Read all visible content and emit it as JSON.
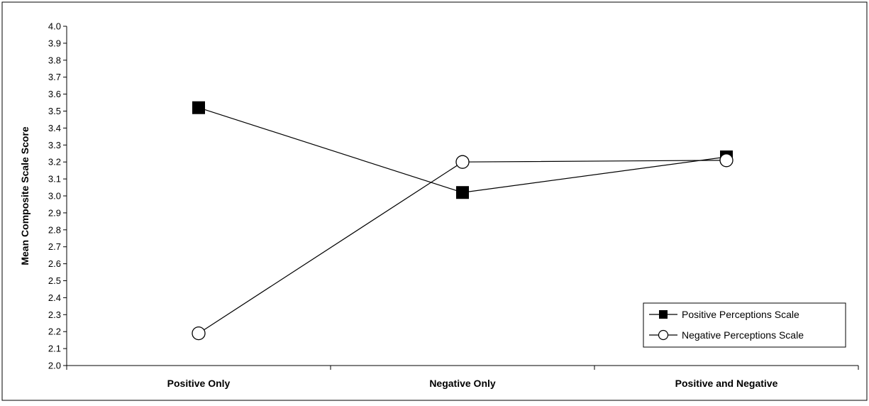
{
  "chart_data": {
    "type": "line",
    "title": "",
    "xlabel": "",
    "ylabel": "Mean Composite Scale Score",
    "categories": [
      "Positive Only",
      "Negative Only",
      "Positive and Negative"
    ],
    "ylim": [
      2.0,
      4.0
    ],
    "yticks": [
      "2.0",
      "2.1",
      "2.2",
      "2.3",
      "2.4",
      "2.5",
      "2.6",
      "2.7",
      "2.8",
      "2.9",
      "3.0",
      "3.1",
      "3.2",
      "3.3",
      "3.4",
      "3.5",
      "3.6",
      "3.7",
      "3.8",
      "3.9",
      "4.0"
    ],
    "grid": false,
    "legend_position": "bottom-right",
    "series": [
      {
        "name": "Positive Perceptions Scale",
        "marker": "filled-square",
        "color": "#000000",
        "values": [
          3.52,
          3.02,
          3.23
        ]
      },
      {
        "name": "Negative Perceptions Scale",
        "marker": "open-circle",
        "color": "#000000",
        "values": [
          2.19,
          3.2,
          3.21
        ]
      }
    ]
  }
}
